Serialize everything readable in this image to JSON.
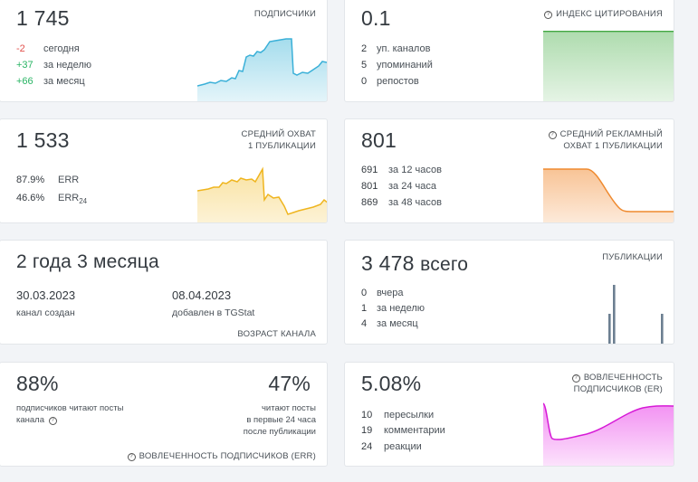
{
  "subscribers": {
    "value": "1 745",
    "caption": "ПОДПИСЧИКИ",
    "rows": [
      {
        "value": "-2",
        "label": "сегодня"
      },
      {
        "value": "+37",
        "label": "за неделю"
      },
      {
        "value": "+66",
        "label": "за месяц"
      }
    ]
  },
  "citation": {
    "value": "0.1",
    "caption": "ИНДЕКС ЦИТИРОВАНИЯ",
    "rows": [
      {
        "value": "2",
        "label": "уп. каналов"
      },
      {
        "value": "5",
        "label": "упоминаний"
      },
      {
        "value": "0",
        "label": "репостов"
      }
    ]
  },
  "avg_reach": {
    "value": "1 533",
    "caption_line1": "СРЕДНИЙ ОХВАТ",
    "caption_line2": "1 ПУБЛИКАЦИИ",
    "err_value": "87.9%",
    "err_label": "ERR",
    "err24_value": "46.6%",
    "err24_label": "ERR",
    "err24_sub": "24"
  },
  "ad_reach": {
    "value": "801",
    "caption_line1": "СРЕДНИЙ РЕКЛАМНЫЙ",
    "caption_line2": "ОХВАТ 1 ПУБЛИКАЦИИ",
    "rows": [
      {
        "value": "691",
        "label": "за 12 часов"
      },
      {
        "value": "801",
        "label": "за 24 часа"
      },
      {
        "value": "869",
        "label": "за 48 часов"
      }
    ]
  },
  "age": {
    "value": "2 года 3 месяца",
    "created_date": "30.03.2023",
    "created_label": "канал создан",
    "added_date": "08.04.2023",
    "added_label": "добавлен в TGStat",
    "caption": "ВОЗРАСТ КАНАЛА"
  },
  "posts": {
    "value": "3 478",
    "suffix": "всего",
    "caption": "ПУБЛИКАЦИИ",
    "rows": [
      {
        "value": "0",
        "label": "вчера"
      },
      {
        "value": "1",
        "label": "за неделю"
      },
      {
        "value": "4",
        "label": "за месяц"
      }
    ]
  },
  "err_engagement": {
    "left_value": "88%",
    "left_text_line1": "подписчиков читают посты",
    "left_text_line2": "канала",
    "right_value": "47%",
    "right_text_line1": "читают посты",
    "right_text_line2": "в первые 24 часа",
    "right_text_line3": "после публикации",
    "caption": "ВОВЛЕЧЕННОСТЬ ПОДПИСЧИКОВ (ERR)"
  },
  "er_engagement": {
    "value": "5.08%",
    "caption_line1": "ВОВЛЕЧЕННОСТЬ",
    "caption_line2": "ПОДПИСЧИКОВ (ER)",
    "rows": [
      {
        "value": "10",
        "label": "пересылки"
      },
      {
        "value": "19",
        "label": "комментарии"
      },
      {
        "value": "24",
        "label": "реакции"
      }
    ]
  },
  "icons": {
    "info": "info-icon",
    "info_glyph": "?"
  },
  "colors": {
    "subscribers": "#5bc0de",
    "citation": "#5cb85c",
    "avg_reach": "#f0c040",
    "ad_reach": "#f0a050",
    "er": "#e040e0",
    "posts_bar": "#6c7f91"
  }
}
